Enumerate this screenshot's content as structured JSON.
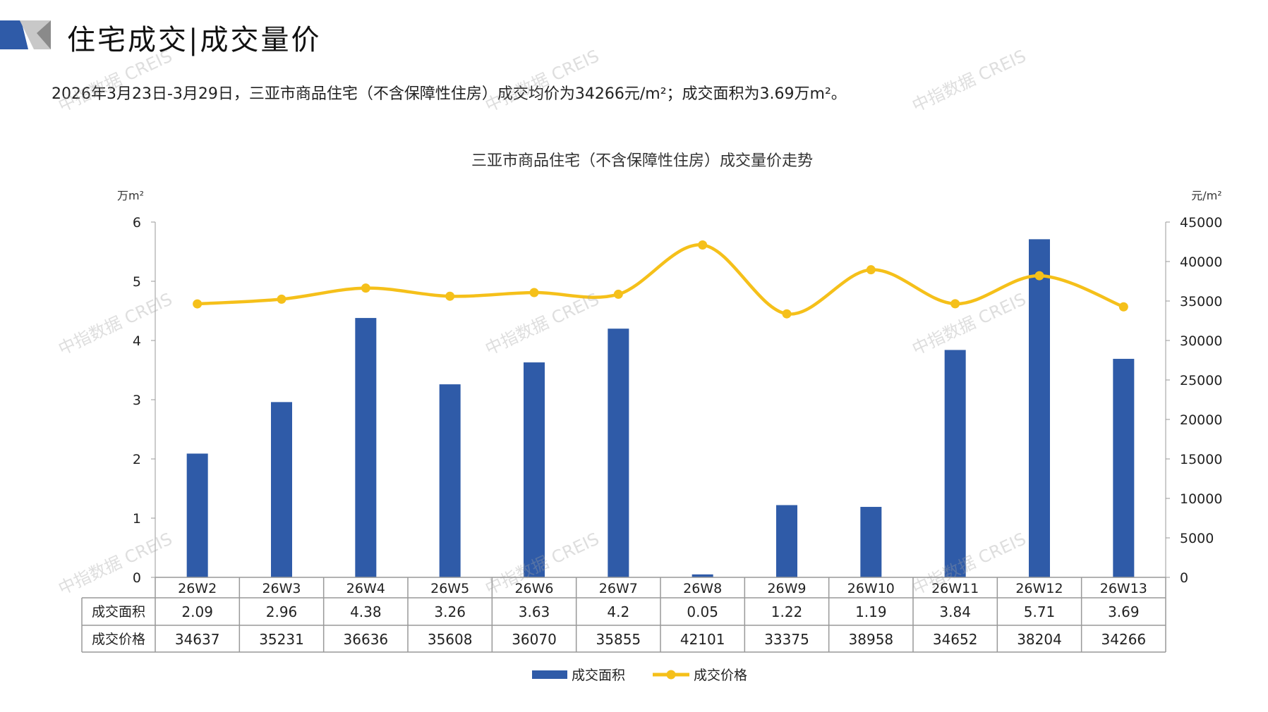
{
  "header": {
    "title": "住宅成交|成交量价",
    "summary": "2026年3月23日-3月29日，三亚市商品住宅（不含保障性住房）成交均价为34266元/m²；成交面积为3.69万m²。"
  },
  "watermark": "中指数据 CREIS",
  "colors": {
    "bar": "#2f5ba8",
    "line": "#f5c01a",
    "grid": "#999999"
  },
  "chart_data": {
    "type": "bar",
    "title": "三亚市商品住宅（不含保障性住房）成交量价走势",
    "y_left_label": "万m²",
    "y_right_label": "元/m²",
    "ylim_left": [
      0,
      6
    ],
    "yticks_left": [
      0,
      1,
      2,
      3,
      4,
      5,
      6
    ],
    "ylim_right": [
      0,
      45000
    ],
    "yticks_right": [
      0,
      5000,
      10000,
      15000,
      20000,
      25000,
      30000,
      35000,
      40000,
      45000
    ],
    "categories": [
      "26W2",
      "26W3",
      "26W4",
      "26W5",
      "26W6",
      "26W7",
      "26W8",
      "26W9",
      "26W10",
      "26W11",
      "26W12",
      "26W13"
    ],
    "series": [
      {
        "name": "成交面积",
        "type": "bar",
        "axis": "left",
        "values": [
          2.09,
          2.96,
          4.38,
          3.26,
          3.63,
          4.2,
          0.05,
          1.22,
          1.19,
          3.84,
          5.71,
          3.69
        ],
        "labels": [
          "2.09",
          "2.96",
          "4.38",
          "3.26",
          "3.63",
          "4.2",
          "0.05",
          "1.22",
          "1.19",
          "3.84",
          "5.71",
          "3.69"
        ]
      },
      {
        "name": "成交价格",
        "type": "line",
        "axis": "right",
        "values": [
          34637,
          35231,
          36636,
          35608,
          36070,
          35855,
          42101,
          33375,
          38958,
          34652,
          38204,
          34266
        ]
      }
    ],
    "legend": "bottom-center",
    "table": true
  }
}
